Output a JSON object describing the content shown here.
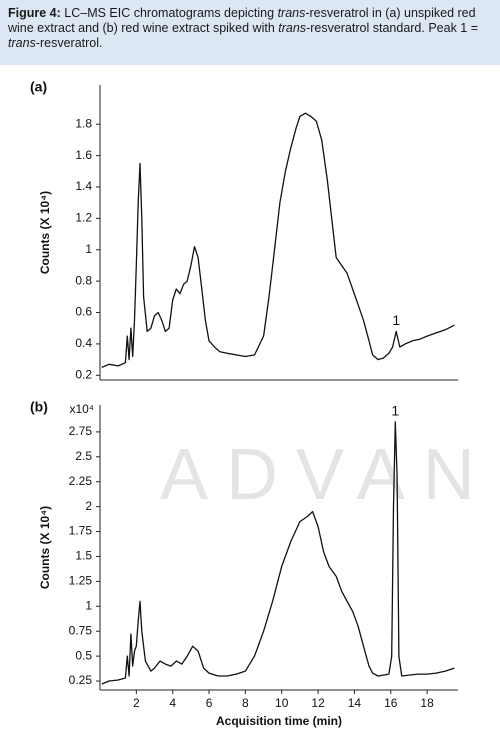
{
  "caption": [
    {
      "text": "Figure 4:",
      "style": "bold"
    },
    {
      "text": " LC–MS EIC chromatograms depicting ",
      "style": "normal"
    },
    {
      "text": "trans",
      "style": "italic"
    },
    {
      "text": "-resveratrol in (a) unspiked red wine extract and (b) red wine extract spiked with ",
      "style": "normal"
    },
    {
      "text": "trans",
      "style": "italic"
    },
    {
      "text": "-resveratrol standard. Peak 1 = ",
      "style": "normal"
    },
    {
      "text": "trans",
      "style": "italic"
    },
    {
      "text": "-resveratrol.",
      "style": "normal"
    }
  ],
  "watermark": "ADVAN",
  "chart_data": [
    {
      "type": "line",
      "panel_label": "(a)",
      "ylabel": "Counts (X 10⁴)",
      "xlim": [
        0,
        19.7
      ],
      "ylim": [
        0.17,
        2.05
      ],
      "yticks": [
        0.2,
        0.4,
        0.6,
        0.8,
        1,
        1.2,
        1.4,
        1.6,
        1.8
      ],
      "annotations": [
        {
          "text": "1",
          "x": 16.3
        }
      ],
      "series": [
        {
          "color": "#111111",
          "x": [
            0.1,
            0.5,
            1.0,
            1.4,
            1.5,
            1.6,
            1.7,
            1.8,
            1.9,
            2.0,
            2.1,
            2.2,
            2.3,
            2.4,
            2.6,
            2.8,
            3.0,
            3.2,
            3.4,
            3.6,
            3.8,
            4.0,
            4.2,
            4.4,
            4.6,
            4.8,
            5.0,
            5.2,
            5.4,
            5.6,
            5.8,
            6.0,
            6.3,
            6.6,
            7.0,
            7.5,
            8.0,
            8.5,
            9.0,
            9.3,
            9.6,
            9.9,
            10.2,
            10.5,
            10.8,
            11.0,
            11.3,
            11.6,
            11.9,
            12.2,
            12.5,
            12.8,
            13.0,
            13.3,
            13.6,
            13.9,
            14.2,
            14.5,
            14.8,
            15.0,
            15.3,
            15.6,
            15.9,
            16.1,
            16.3,
            16.5,
            16.8,
            17.2,
            17.6,
            18.0,
            18.5,
            19.0,
            19.5
          ],
          "values": [
            0.25,
            0.27,
            0.26,
            0.28,
            0.45,
            0.3,
            0.5,
            0.32,
            0.55,
            0.9,
            1.3,
            1.55,
            1.2,
            0.7,
            0.48,
            0.5,
            0.58,
            0.6,
            0.55,
            0.48,
            0.5,
            0.68,
            0.75,
            0.72,
            0.78,
            0.8,
            0.9,
            1.02,
            0.95,
            0.75,
            0.55,
            0.42,
            0.38,
            0.35,
            0.34,
            0.33,
            0.32,
            0.33,
            0.45,
            0.7,
            1.0,
            1.3,
            1.5,
            1.65,
            1.78,
            1.85,
            1.87,
            1.85,
            1.82,
            1.7,
            1.45,
            1.15,
            0.95,
            0.9,
            0.85,
            0.75,
            0.65,
            0.55,
            0.42,
            0.33,
            0.3,
            0.31,
            0.34,
            0.38,
            0.48,
            0.38,
            0.4,
            0.42,
            0.43,
            0.45,
            0.47,
            0.49,
            0.52
          ]
        }
      ]
    },
    {
      "type": "line",
      "panel_label": "(b)",
      "ylabel": "Counts (X 10⁴)",
      "scale_label": "x10⁴",
      "xlabel": "Acquisition time (min)",
      "xlim": [
        0,
        19.7
      ],
      "ylim": [
        0.16,
        3.02
      ],
      "xticks": [
        2,
        4,
        6,
        8,
        10,
        12,
        14,
        16,
        18
      ],
      "yticks": [
        0.25,
        0.5,
        0.75,
        1,
        1.25,
        1.5,
        1.75,
        2,
        2.25,
        2.5,
        2.75
      ],
      "annotations": [
        {
          "text": "1",
          "x": 16.25
        }
      ],
      "series": [
        {
          "color": "#111111",
          "x": [
            0.1,
            0.5,
            1.0,
            1.4,
            1.5,
            1.6,
            1.7,
            1.8,
            1.9,
            2.0,
            2.1,
            2.2,
            2.3,
            2.5,
            2.8,
            3.0,
            3.3,
            3.6,
            3.9,
            4.2,
            4.5,
            4.8,
            5.1,
            5.4,
            5.7,
            6.0,
            6.5,
            7.0,
            7.5,
            8.0,
            8.5,
            9.0,
            9.5,
            10.0,
            10.5,
            11.0,
            11.4,
            11.7,
            12.0,
            12.3,
            12.6,
            13.0,
            13.3,
            13.6,
            13.9,
            14.2,
            14.5,
            14.8,
            15.0,
            15.3,
            15.6,
            15.9,
            16.05,
            16.15,
            16.25,
            16.35,
            16.45,
            16.6,
            17.0,
            17.5,
            18.0,
            18.5,
            19.0,
            19.5
          ],
          "values": [
            0.22,
            0.25,
            0.26,
            0.28,
            0.5,
            0.3,
            0.72,
            0.4,
            0.55,
            0.6,
            0.85,
            1.05,
            0.75,
            0.45,
            0.35,
            0.38,
            0.45,
            0.42,
            0.4,
            0.45,
            0.42,
            0.5,
            0.6,
            0.55,
            0.38,
            0.33,
            0.3,
            0.3,
            0.32,
            0.35,
            0.5,
            0.75,
            1.05,
            1.4,
            1.65,
            1.85,
            1.9,
            1.95,
            1.8,
            1.55,
            1.4,
            1.3,
            1.15,
            1.05,
            0.95,
            0.8,
            0.6,
            0.4,
            0.33,
            0.3,
            0.31,
            0.32,
            0.5,
            2.0,
            2.85,
            2.3,
            0.5,
            0.3,
            0.31,
            0.32,
            0.32,
            0.33,
            0.35,
            0.38
          ]
        }
      ]
    }
  ]
}
